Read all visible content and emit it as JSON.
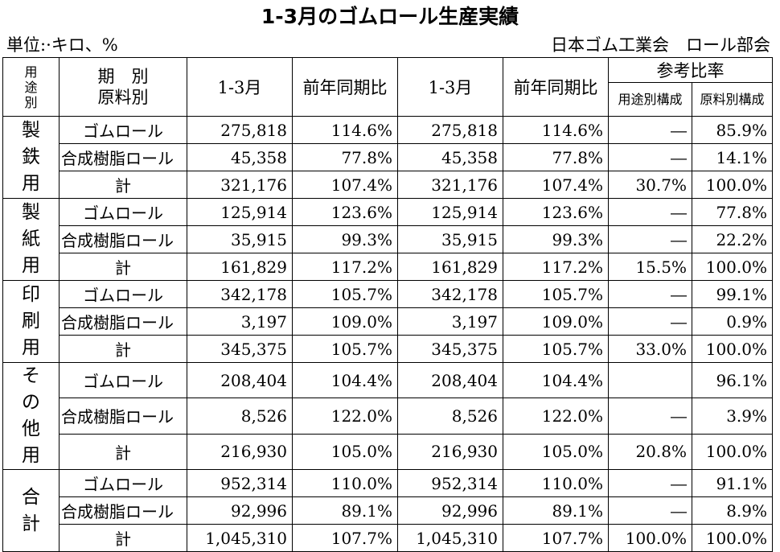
{
  "title": "1-3月のゴムロール生産実績",
  "unit_label": "単位:·キロ、%",
  "source_label": "日本ゴム工業会　ロール部会",
  "header": {
    "yoto": "用\n途\n別",
    "kikan": "期　別",
    "genryo": "原料別",
    "col1": "1-3月",
    "col2": "前年同期比",
    "col3": "1-3月",
    "col4": "前年同期比",
    "ref_group": "参考比率",
    "col5": "用途別構成",
    "col6": "原料別構成"
  },
  "groups": [
    {
      "label": "製\n鉄\n用",
      "rows": [
        {
          "material": "ゴムロール",
          "v1": "275,818",
          "p1": "114.6%",
          "v2": "275,818",
          "p2": "114.6%",
          "use": "―",
          "mat": "85.9%"
        },
        {
          "material": "合成樹脂ロール",
          "v1": "45,358",
          "p1": "77.8%",
          "v2": "45,358",
          "p2": "77.8%",
          "use": "―",
          "mat": "14.1%"
        },
        {
          "material": "計",
          "v1": "321,176",
          "p1": "107.4%",
          "v2": "321,176",
          "p2": "107.4%",
          "use": "30.7%",
          "mat": "100.0%"
        }
      ]
    },
    {
      "label": "製\n紙\n用",
      "rows": [
        {
          "material": "ゴムロール",
          "v1": "125,914",
          "p1": "123.6%",
          "v2": "125,914",
          "p2": "123.6%",
          "use": "―",
          "mat": "77.8%"
        },
        {
          "material": "合成樹脂ロール",
          "v1": "35,915",
          "p1": "99.3%",
          "v2": "35,915",
          "p2": "99.3%",
          "use": "―",
          "mat": "22.2%"
        },
        {
          "material": "計",
          "v1": "161,829",
          "p1": "117.2%",
          "v2": "161,829",
          "p2": "117.2%",
          "use": "15.5%",
          "mat": "100.0%"
        }
      ]
    },
    {
      "label": "印\n刷\n用",
      "rows": [
        {
          "material": "ゴムロール",
          "v1": "342,178",
          "p1": "105.7%",
          "v2": "342,178",
          "p2": "105.7%",
          "use": "―",
          "mat": "99.1%"
        },
        {
          "material": "合成樹脂ロール",
          "v1": "3,197",
          "p1": "109.0%",
          "v2": "3,197",
          "p2": "109.0%",
          "use": "―",
          "mat": "0.9%"
        },
        {
          "material": "計",
          "v1": "345,375",
          "p1": "105.7%",
          "v2": "345,375",
          "p2": "105.7%",
          "use": "33.0%",
          "mat": "100.0%"
        }
      ]
    },
    {
      "label": "そ\nの\n他\n用",
      "rows": [
        {
          "material": "ゴムロール",
          "v1": "208,404",
          "p1": "104.4%",
          "v2": "208,404",
          "p2": "104.4%",
          "use": "",
          "mat": "96.1%"
        },
        {
          "material": "合成樹脂ロール",
          "v1": "8,526",
          "p1": "122.0%",
          "v2": "8,526",
          "p2": "122.0%",
          "use": "―",
          "mat": "3.9%"
        },
        {
          "material": "計",
          "v1": "216,930",
          "p1": "105.0%",
          "v2": "216,930",
          "p2": "105.0%",
          "use": "20.8%",
          "mat": "100.0%"
        }
      ]
    },
    {
      "label": "合\n計",
      "rows": [
        {
          "material": "ゴムロール",
          "v1": "952,314",
          "p1": "110.0%",
          "v2": "952,314",
          "p2": "110.0%",
          "use": "―",
          "mat": "91.1%"
        },
        {
          "material": "合成樹脂ロール",
          "v1": "92,996",
          "p1": "89.1%",
          "v2": "92,996",
          "p2": "89.1%",
          "use": "―",
          "mat": "8.9%"
        },
        {
          "material": "計",
          "v1": "1,045,310",
          "p1": "107.7%",
          "v2": "1,045,310",
          "p2": "107.7%",
          "use": "100.0%",
          "mat": "100.0%"
        }
      ]
    }
  ]
}
